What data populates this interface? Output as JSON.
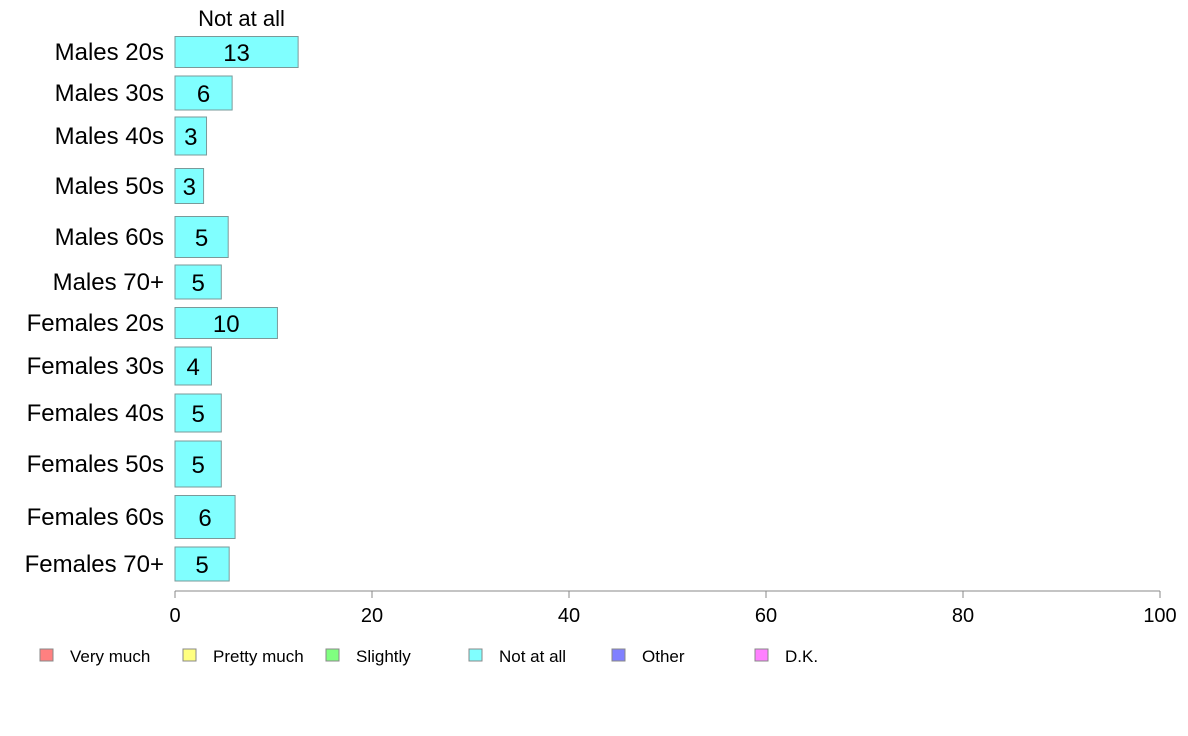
{
  "chart_data": {
    "type": "bar",
    "orientation": "horizontal",
    "stacked": true,
    "categories": [
      "Males 20s",
      "Males 30s",
      "Males 40s",
      "Males 50s",
      "Males 60s",
      "Males 70+",
      "Females 20s",
      "Females 30s",
      "Females 40s",
      "Females 50s",
      "Females 60s",
      "Females 70+"
    ],
    "series": [
      {
        "name": "Not at all",
        "color": "#80ffff",
        "values": [
          13,
          6,
          3,
          3,
          5,
          5,
          10,
          4,
          5,
          5,
          6,
          5
        ]
      }
    ],
    "value_estimates": [
      12.5,
      5.8,
      3.2,
      2.9,
      5.4,
      4.7,
      10.4,
      3.7,
      4.7,
      4.7,
      6.1,
      5.5
    ],
    "series_header": "Not at all",
    "xlim": [
      0,
      100
    ],
    "xticks": [
      0,
      20,
      40,
      60,
      80,
      100
    ],
    "grid": false,
    "legend": {
      "placement": "bottom",
      "items": [
        {
          "label": "Very much",
          "color": "#ff8080"
        },
        {
          "label": "Pretty much",
          "color": "#ffff80"
        },
        {
          "label": "Slightly",
          "color": "#80ff80"
        },
        {
          "label": "Not at all",
          "color": "#80ffff"
        },
        {
          "label": "Other",
          "color": "#8080ff"
        },
        {
          "label": "D.K.",
          "color": "#ff80ff"
        }
      ]
    }
  }
}
